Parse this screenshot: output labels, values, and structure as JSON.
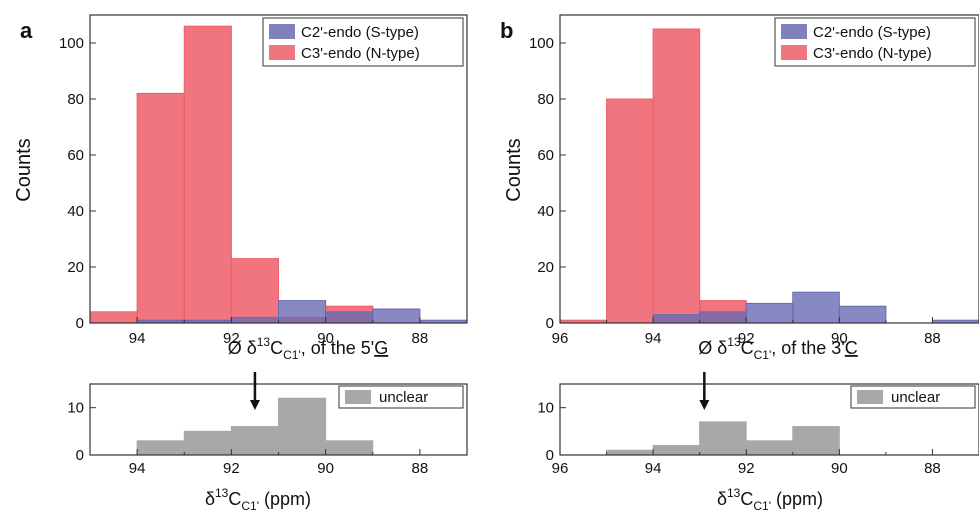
{
  "colors": {
    "s_type": "#6a6ab4",
    "n_type": "#ef5d68",
    "unclear": "#a8a8a8",
    "axis": "#333333"
  },
  "chart_data": [
    {
      "id": "a",
      "type": "bar",
      "panel_label": "a",
      "ylabel": "Counts",
      "xlabel_main": "Ø δ",
      "xlabel_sup": "13",
      "xlabel_c": "C",
      "xlabel_sub": "C1'",
      "xlabel_tail": ",  of the 5'",
      "xlabel_nuc": "G",
      "xlim": [
        95,
        87
      ],
      "ylim": [
        0,
        110
      ],
      "xticks": [
        94,
        92,
        90,
        88
      ],
      "yticks": [
        0,
        20,
        40,
        60,
        80,
        100
      ],
      "bin_width": 1,
      "legend": {
        "placement": "top-right",
        "entries": [
          "C2'-endo (S-type)",
          "C3'-endo (N-type)"
        ]
      },
      "series": [
        {
          "name": "C3'-endo (N-type)",
          "color_key": "n_type",
          "bins": [
            95,
            94,
            93,
            92,
            91,
            90
          ],
          "values": [
            4,
            82,
            106,
            23,
            2,
            6
          ]
        },
        {
          "name": "C2'-endo (S-type)",
          "color_key": "s_type",
          "bins": [
            94,
            93,
            92,
            91,
            90,
            89,
            88
          ],
          "values": [
            1,
            1,
            2,
            8,
            4,
            5,
            1
          ]
        }
      ],
      "unclear": {
        "legend": "unclear",
        "ylim": [
          0,
          15
        ],
        "yticks": [
          0,
          10
        ],
        "xticks": [
          94,
          92,
          90,
          88
        ],
        "bins": [
          94,
          93,
          92,
          91,
          90
        ],
        "values": [
          3,
          5,
          6,
          12,
          3
        ],
        "arrow_at": 91.5,
        "xlabel_main": "δ",
        "xlabel_sup": "13",
        "xlabel_c": "C",
        "xlabel_sub": "C1'",
        "xlabel_tail": "  (ppm)"
      }
    },
    {
      "id": "b",
      "type": "bar",
      "panel_label": "b",
      "ylabel": "Counts",
      "xlabel_main": "Ø δ",
      "xlabel_sup": "13",
      "xlabel_c": "C",
      "xlabel_sub": "C1'",
      "xlabel_tail": ",  of the 3'",
      "xlabel_nuc": "C",
      "xlim": [
        96,
        87
      ],
      "ylim": [
        0,
        110
      ],
      "xticks": [
        96,
        94,
        92,
        90,
        88
      ],
      "yticks": [
        0,
        20,
        40,
        60,
        80,
        100
      ],
      "bin_width": 1,
      "legend": {
        "placement": "top-right",
        "entries": [
          "C2'-endo (S-type)",
          "C3'-endo (N-type)"
        ]
      },
      "series": [
        {
          "name": "C3'-endo (N-type)",
          "color_key": "n_type",
          "bins": [
            96,
            95,
            94,
            93
          ],
          "values": [
            1,
            80,
            105,
            8
          ]
        },
        {
          "name": "C2'-endo (S-type)",
          "color_key": "s_type",
          "bins": [
            94,
            93,
            92,
            91,
            90,
            88
          ],
          "values": [
            3,
            4,
            7,
            11,
            6,
            1
          ]
        }
      ],
      "unclear": {
        "legend": "unclear",
        "ylim": [
          0,
          15
        ],
        "yticks": [
          0,
          10
        ],
        "xticks": [
          96,
          94,
          92,
          90,
          88
        ],
        "bins": [
          95,
          94,
          93,
          92,
          91
        ],
        "values": [
          1,
          2,
          7,
          3,
          6
        ],
        "arrow_at": 92.9,
        "xlabel_main": "δ",
        "xlabel_sup": "13",
        "xlabel_c": "C",
        "xlabel_sub": "C1'",
        "xlabel_tail": "  (ppm)"
      }
    }
  ]
}
